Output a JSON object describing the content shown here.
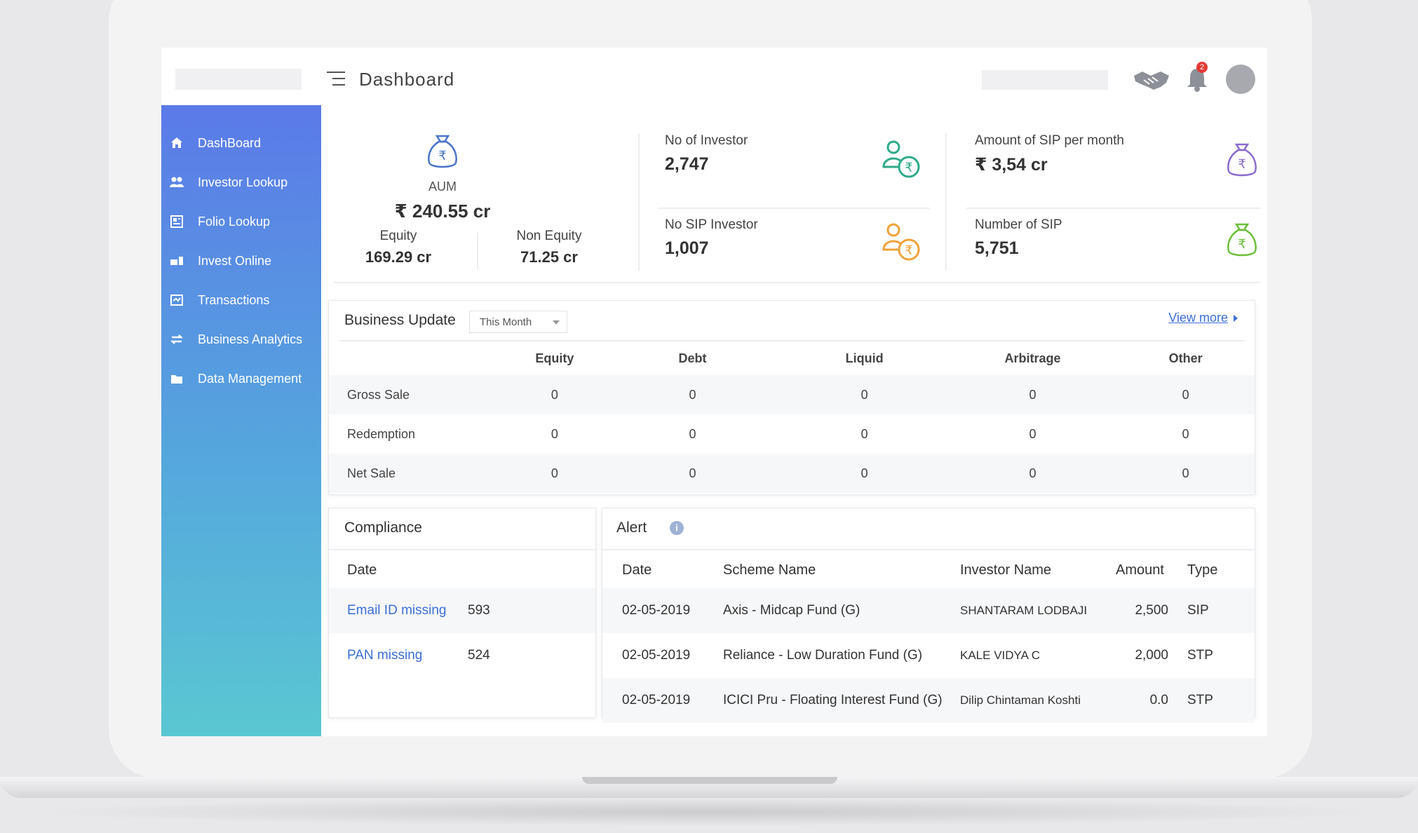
{
  "header": {
    "title": "Dashboard",
    "notification_count": "2"
  },
  "sidebar": {
    "items": [
      {
        "label": "DashBoard",
        "icon": "home-icon"
      },
      {
        "label": "Investor Lookup",
        "icon": "users-icon"
      },
      {
        "label": "Folio Lookup",
        "icon": "folio-icon"
      },
      {
        "label": "Invest Online",
        "icon": "invest-icon"
      },
      {
        "label": "Transactions",
        "icon": "transactions-icon"
      },
      {
        "label": "Business Analytics",
        "icon": "analytics-icon"
      },
      {
        "label": "Data Management",
        "icon": "data-icon"
      }
    ]
  },
  "kpis": {
    "aum": {
      "label": "AUM",
      "value": "₹ 240.55 cr",
      "equity_label": "Equity",
      "equity_value": "169.29 cr",
      "non_equity_label": "Non Equity",
      "non_equity_value": "71.25 cr"
    },
    "no_of_investor": {
      "label": "No of Investor",
      "value": "2,747"
    },
    "no_sip_investor": {
      "label": "No SIP Investor",
      "value": "1,007"
    },
    "sip_amount": {
      "label": "Amount of SIP per month",
      "value": "₹ 3,54 cr"
    },
    "number_of_sip": {
      "label": "Number of SIP",
      "value": "5,751"
    }
  },
  "business_update": {
    "title": "Business Update",
    "period": "This Month",
    "view_more": "View more",
    "columns": [
      "Equity",
      "Debt",
      "Liquid",
      "Arbitrage",
      "Other"
    ],
    "rows": [
      {
        "label": "Gross Sale",
        "values": [
          "0",
          "0",
          "0",
          "0",
          "0"
        ]
      },
      {
        "label": "Redemption",
        "values": [
          "0",
          "0",
          "0",
          "0",
          "0"
        ]
      },
      {
        "label": "Net Sale",
        "values": [
          "0",
          "0",
          "0",
          "0",
          "0"
        ]
      }
    ]
  },
  "compliance": {
    "title": "Compliance",
    "header": "Date",
    "rows": [
      {
        "label": "Email ID missing",
        "count": "593"
      },
      {
        "label": "PAN missing",
        "count": "524"
      }
    ]
  },
  "alert": {
    "title": "Alert",
    "info_glyph": "i",
    "columns": [
      "Date",
      "Scheme Name",
      "Investor Name",
      "Amount",
      "Type"
    ],
    "rows": [
      {
        "date": "02-05-2019",
        "scheme": "Axis - Midcap Fund (G)",
        "investor": "SHANTARAM LODBAJI",
        "amount": "2,500",
        "type": "SIP"
      },
      {
        "date": "02-05-2019",
        "scheme": "Reliance - Low Duration Fund (G)",
        "investor": "KALE VIDYA C",
        "amount": "2,000",
        "type": "STP"
      },
      {
        "date": "02-05-2019",
        "scheme": "ICICI Pru - Floating Interest Fund (G)",
        "investor": "Dilip Chintaman Koshti",
        "amount": "0.0",
        "type": "STP"
      }
    ]
  },
  "colors": {
    "sidebar_top": "#5b7ae8",
    "sidebar_bottom": "#5ac7d2",
    "link": "#3b6fd6",
    "badge": "#e53935"
  }
}
